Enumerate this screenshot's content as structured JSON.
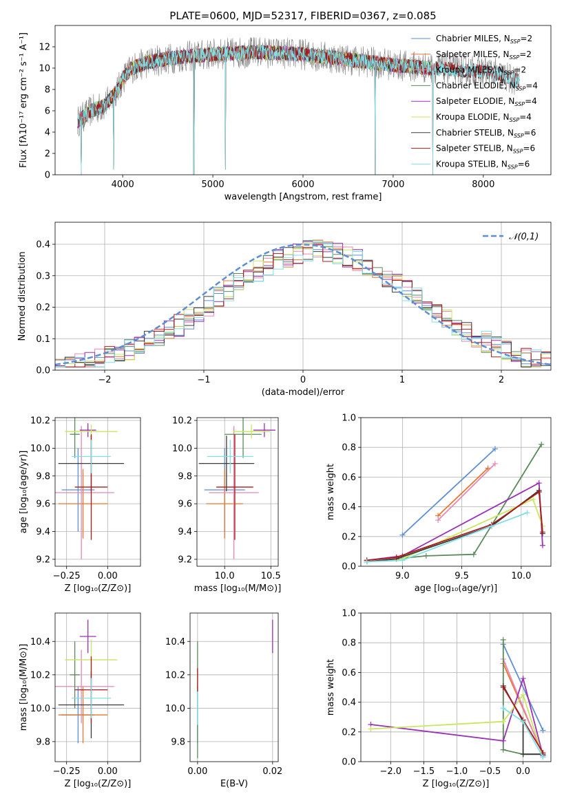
{
  "colors": {
    "chabrier_miles": "#5b8ed6",
    "salpeter_miles": "#e8762b",
    "kroupa_miles": "#e887b3",
    "chabrier_elodie": "#5a8a5a",
    "salpeter_elodie": "#9b30b5",
    "kroupa_elodie": "#c8e660",
    "chabrier_stelib": "#3a3a3a",
    "salpeter_stelib": "#b01818",
    "kroupa_stelib": "#7fdfe6",
    "data": "#7f7f7f",
    "normal": "#5b8ed6",
    "grid": "#b0b0b0"
  },
  "models": [
    {
      "key": "chabrier_miles",
      "name": "Chabrier MILES",
      "nssp": "2"
    },
    {
      "key": "salpeter_miles",
      "name": "Salpeter MILES",
      "nssp": "2"
    },
    {
      "key": "kroupa_miles",
      "name": "Kroupa MILES",
      "nssp": "2"
    },
    {
      "key": "chabrier_elodie",
      "name": "Chabrier ELODIE",
      "nssp": "4"
    },
    {
      "key": "salpeter_elodie",
      "name": "Salpeter ELODIE",
      "nssp": "4"
    },
    {
      "key": "kroupa_elodie",
      "name": "Kroupa ELODIE",
      "nssp": "4"
    },
    {
      "key": "chabrier_stelib",
      "name": "Chabrier STELIB",
      "nssp": "6"
    },
    {
      "key": "salpeter_stelib",
      "name": "Salpeter STELIB",
      "nssp": "6"
    },
    {
      "key": "kroupa_stelib",
      "name": "Kroupa STELIB",
      "nssp": "6"
    }
  ],
  "chart_data": [
    {
      "id": "spectrum",
      "type": "line",
      "title": "PLATE=0600, MJD=52317, FIBERID=0367, z=0.085",
      "xlabel": "wavelength [Angstrom, rest frame]",
      "ylabel": "Flux [fλ10⁻¹⁷ erg cm⁻² s⁻¹ A⁻¹]",
      "xlim": [
        3250,
        8750
      ],
      "ylim": [
        0,
        14
      ],
      "xticks": [
        4000,
        5000,
        6000,
        7000,
        8000
      ],
      "yticks": [
        0,
        2,
        4,
        6,
        8,
        10,
        12
      ],
      "legend_position": "top-right",
      "continuum": [
        [
          3500,
          5.0
        ],
        [
          3650,
          6.0
        ],
        [
          3800,
          6.5
        ],
        [
          3950,
          8.0
        ],
        [
          4000,
          9.0
        ],
        [
          4100,
          10.0
        ],
        [
          4300,
          10.6
        ],
        [
          4600,
          11.0
        ],
        [
          5000,
          11.3
        ],
        [
          5500,
          11.5
        ],
        [
          6000,
          11.3
        ],
        [
          6500,
          10.8
        ],
        [
          7000,
          10.3
        ],
        [
          7400,
          10.0
        ],
        [
          7800,
          9.8
        ],
        [
          8100,
          9.6
        ],
        [
          8300,
          9.0
        ],
        [
          8400,
          8.7
        ]
      ],
      "model_range": [
        3500,
        7440
      ],
      "stelib_range": [
        3500,
        8400
      ],
      "dips": [
        [
          3540,
          0
        ],
        [
          3900,
          0.5
        ],
        [
          4790,
          0
        ],
        [
          5140,
          0.5
        ],
        [
          6800,
          0
        ],
        [
          7440,
          0
        ]
      ]
    },
    {
      "id": "residuals",
      "type": "histogram",
      "xlabel": "(data-model)/error",
      "ylabel": "Normed distribution",
      "xlim": [
        -2.5,
        2.5
      ],
      "ylim": [
        0,
        0.47
      ],
      "xticks": [
        -2,
        -1,
        0,
        1,
        2
      ],
      "yticks": [
        0.0,
        0.1,
        0.2,
        0.3,
        0.4
      ],
      "legend_label": "𝒩(0,1)",
      "legend_position": "top-right",
      "bin_width": 0.1
    },
    {
      "id": "age_vs_z",
      "type": "errorbar",
      "xlabel": "Z [log₁₀(Z/Z⊙)]",
      "ylabel": "age  [log₁₀(age/yr)]",
      "xlim": [
        -0.32,
        0.2
      ],
      "ylim": [
        9.15,
        10.22
      ],
      "xticks": [
        -0.25,
        0.0
      ],
      "yticks": [
        9.2,
        9.4,
        9.6,
        9.8,
        10.0,
        10.2
      ],
      "points": [
        {
          "m": "chabrier_miles",
          "x": -0.18,
          "y": 9.7,
          "xe": 0.1,
          "ye": 0.3
        },
        {
          "m": "salpeter_miles",
          "x": -0.15,
          "y": 9.6,
          "xe": 0.15,
          "ye": 0.25
        },
        {
          "m": "kroupa_miles",
          "x": -0.16,
          "y": 9.68,
          "xe": 0.2,
          "ye": 0.48
        },
        {
          "m": "chabrier_elodie",
          "x": -0.2,
          "y": 10.1,
          "xe": 0.03,
          "ye": 0.17
        },
        {
          "m": "salpeter_elodie",
          "x": -0.12,
          "y": 10.13,
          "xe": 0.05,
          "ye": 0.05
        },
        {
          "m": "kroupa_elodie",
          "x": -0.1,
          "y": 10.12,
          "xe": 0.16,
          "ye": 0.05
        },
        {
          "m": "chabrier_stelib",
          "x": -0.1,
          "y": 9.89,
          "xe": 0.2,
          "ye": 0.2
        },
        {
          "m": "salpeter_stelib",
          "x": -0.1,
          "y": 9.72,
          "xe": 0.1,
          "ye": 0.38
        },
        {
          "m": "kroupa_stelib",
          "x": -0.1,
          "y": 9.94,
          "xe": 0.12,
          "ye": 0.12
        }
      ]
    },
    {
      "id": "age_vs_mass",
      "type": "errorbar",
      "xlabel": "mass [log₁₀(M/M⊙)]",
      "ylabel": "",
      "xlim": [
        9.7,
        10.58
      ],
      "ylim": [
        9.15,
        10.22
      ],
      "xticks": [
        10.0,
        10.5
      ],
      "yticks": [
        9.2,
        9.4,
        9.6,
        9.8,
        10.0,
        10.2
      ],
      "points": [
        {
          "m": "chabrier_miles",
          "x": 10.0,
          "y": 9.7,
          "xe": 0.22,
          "ye": 0.3
        },
        {
          "m": "salpeter_miles",
          "x": 10.0,
          "y": 9.6,
          "xe": 0.2,
          "ye": 0.25
        },
        {
          "m": "kroupa_miles",
          "x": 10.1,
          "y": 9.68,
          "xe": 0.27,
          "ye": 0.48
        },
        {
          "m": "chabrier_elodie",
          "x": 10.2,
          "y": 10.1,
          "xe": 0.2,
          "ye": 0.17
        },
        {
          "m": "salpeter_elodie",
          "x": 10.43,
          "y": 10.13,
          "xe": 0.12,
          "ye": 0.05
        },
        {
          "m": "kroupa_elodie",
          "x": 10.29,
          "y": 10.12,
          "xe": 0.2,
          "ye": 0.05
        },
        {
          "m": "chabrier_stelib",
          "x": 10.02,
          "y": 9.89,
          "xe": 0.3,
          "ye": 0.2
        },
        {
          "m": "salpeter_stelib",
          "x": 10.11,
          "y": 9.72,
          "xe": 0.2,
          "ye": 0.38
        },
        {
          "m": "kroupa_stelib",
          "x": 10.06,
          "y": 9.94,
          "xe": 0.25,
          "ye": 0.12
        }
      ]
    },
    {
      "id": "weight_vs_age",
      "type": "line",
      "xlabel": "age  [log₁₀(age/yr)]",
      "ylabel": "mass weight",
      "xlim": [
        8.65,
        10.25
      ],
      "ylim": [
        0,
        1.0
      ],
      "xticks": [
        9.0,
        9.5,
        10.0
      ],
      "yticks": [
        0.0,
        0.2,
        0.4,
        0.6,
        0.8,
        1.0
      ],
      "series": [
        {
          "m": "chabrier_miles",
          "x": [
            9.0,
            9.78
          ],
          "y": [
            0.21,
            0.79
          ]
        },
        {
          "m": "salpeter_miles",
          "x": [
            9.3,
            9.72
          ],
          "y": [
            0.34,
            0.66
          ]
        },
        {
          "m": "kroupa_miles",
          "x": [
            9.3,
            9.78
          ],
          "y": [
            0.31,
            0.69
          ]
        },
        {
          "m": "chabrier_elodie",
          "x": [
            8.7,
            9.2,
            9.6,
            10.17
          ],
          "y": [
            0.03,
            0.07,
            0.08,
            0.82
          ]
        },
        {
          "m": "salpeter_elodie",
          "x": [
            8.7,
            9.0,
            10.15,
            10.18
          ],
          "y": [
            0.04,
            0.07,
            0.56,
            0.14
          ]
        },
        {
          "m": "kroupa_elodie",
          "x": [
            8.7,
            9.0,
            10.1,
            10.18
          ],
          "y": [
            0.03,
            0.05,
            0.45,
            0.27
          ]
        },
        {
          "m": "chabrier_stelib",
          "x": [
            8.7,
            8.95,
            9.75,
            10.15,
            10.18
          ],
          "y": [
            0.03,
            0.05,
            0.27,
            0.51,
            0.22
          ]
        },
        {
          "m": "salpeter_stelib",
          "x": [
            8.7,
            8.95,
            9.75,
            10.15,
            10.18
          ],
          "y": [
            0.04,
            0.06,
            0.28,
            0.5,
            0.23
          ]
        },
        {
          "m": "kroupa_stelib",
          "x": [
            8.7,
            9.0,
            9.75,
            10.05
          ],
          "y": [
            0.03,
            0.04,
            0.27,
            0.36
          ]
        }
      ]
    },
    {
      "id": "mass_vs_z",
      "type": "errorbar",
      "xlabel": "Z [log₁₀(Z/Z⊙)]",
      "ylabel": "mass [log₁₀(M/M⊙)]",
      "xlim": [
        -0.32,
        0.2
      ],
      "ylim": [
        9.68,
        10.57
      ],
      "xticks": [
        -0.25,
        0.0
      ],
      "yticks": [
        9.8,
        10.0,
        10.2,
        10.4
      ],
      "points": [
        {
          "m": "chabrier_miles",
          "x": -0.18,
          "y": 9.96,
          "xe": 0.1,
          "ye": 0.17
        },
        {
          "m": "salpeter_miles",
          "x": -0.15,
          "y": 9.96,
          "xe": 0.15,
          "ye": 0.17
        },
        {
          "m": "kroupa_miles",
          "x": -0.16,
          "y": 10.13,
          "xe": 0.2,
          "ye": 0.22
        },
        {
          "m": "chabrier_elodie",
          "x": -0.2,
          "y": 10.2,
          "xe": 0.03,
          "ye": 0.2
        },
        {
          "m": "salpeter_elodie",
          "x": -0.12,
          "y": 10.43,
          "xe": 0.05,
          "ye": 0.1
        },
        {
          "m": "kroupa_elodie",
          "x": -0.1,
          "y": 10.29,
          "xe": 0.16,
          "ye": 0.12
        },
        {
          "m": "chabrier_stelib",
          "x": -0.1,
          "y": 10.02,
          "xe": 0.2,
          "ye": 0.2
        },
        {
          "m": "salpeter_stelib",
          "x": -0.1,
          "y": 10.11,
          "xe": 0.1,
          "ye": 0.2
        },
        {
          "m": "kroupa_stelib",
          "x": -0.1,
          "y": 10.06,
          "xe": 0.12,
          "ye": 0.12
        }
      ]
    },
    {
      "id": "mass_vs_ebv",
      "type": "errorbar",
      "xlabel": "E(B-V)",
      "ylabel": "",
      "xlim": [
        -0.002,
        0.0215
      ],
      "ylim": [
        9.68,
        10.57
      ],
      "xticks": [
        0.0,
        0.02
      ],
      "yticks": [
        9.8,
        10.0,
        10.2,
        10.4
      ],
      "points": [
        {
          "m": "chabrier_miles",
          "x": 0.0,
          "y": 9.96,
          "xe": 0,
          "ye": 0.17
        },
        {
          "m": "chabrier_elodie",
          "x": 0.0,
          "y": 10.05,
          "xe": 0,
          "ye": 0.35
        },
        {
          "m": "salpeter_elodie",
          "x": 0.02,
          "y": 10.43,
          "xe": 0,
          "ye": 0.1
        },
        {
          "m": "salpeter_stelib",
          "x": 0.0,
          "y": 10.17,
          "xe": 0,
          "ye": 0.07
        },
        {
          "m": "kroupa_stelib",
          "x": 0.0,
          "y": 10.0,
          "xe": 0,
          "ye": 0.1
        }
      ]
    },
    {
      "id": "weight_vs_z",
      "type": "line",
      "xlabel": "Z [log₁₀(Z/Z⊙)]",
      "ylabel": "mass weight",
      "xlim": [
        -2.45,
        0.42
      ],
      "ylim": [
        0,
        1.0
      ],
      "xticks": [
        -2.0,
        -1.5,
        -1.0,
        -0.5,
        0.0
      ],
      "yticks": [
        0.0,
        0.2,
        0.4,
        0.6,
        0.8,
        1.0
      ],
      "series": [
        {
          "m": "chabrier_miles",
          "x": [
            -0.3,
            0.3
          ],
          "y": [
            0.79,
            0.21
          ]
        },
        {
          "m": "salpeter_miles",
          "x": [
            -0.3,
            0.3
          ],
          "y": [
            0.66,
            0.05
          ]
        },
        {
          "m": "kroupa_miles",
          "x": [
            -0.3,
            0.3
          ],
          "y": [
            0.69,
            0.04
          ]
        },
        {
          "m": "chabrier_elodie",
          "x": [
            -0.3,
            -0.3,
            0.0,
            0.3
          ],
          "y": [
            0.82,
            0.08,
            0.05,
            0.05
          ]
        },
        {
          "m": "salpeter_elodie",
          "x": [
            -2.3,
            -0.3,
            0.0,
            0.3
          ],
          "y": [
            0.25,
            0.14,
            0.56,
            0.04
          ]
        },
        {
          "m": "kroupa_elodie",
          "x": [
            -2.3,
            -0.3,
            0.0,
            0.3
          ],
          "y": [
            0.22,
            0.27,
            0.45,
            0.03
          ]
        },
        {
          "m": "chabrier_stelib",
          "x": [
            -0.3,
            0.0,
            0.0,
            0.3
          ],
          "y": [
            0.51,
            0.27,
            0.05,
            0.05
          ]
        },
        {
          "m": "salpeter_stelib",
          "x": [
            -0.3,
            0.0,
            0.3
          ],
          "y": [
            0.5,
            0.28,
            0.06
          ]
        },
        {
          "m": "kroupa_stelib",
          "x": [
            -0.3,
            0.0,
            0.3
          ],
          "y": [
            0.36,
            0.27,
            0.03
          ]
        }
      ]
    }
  ]
}
